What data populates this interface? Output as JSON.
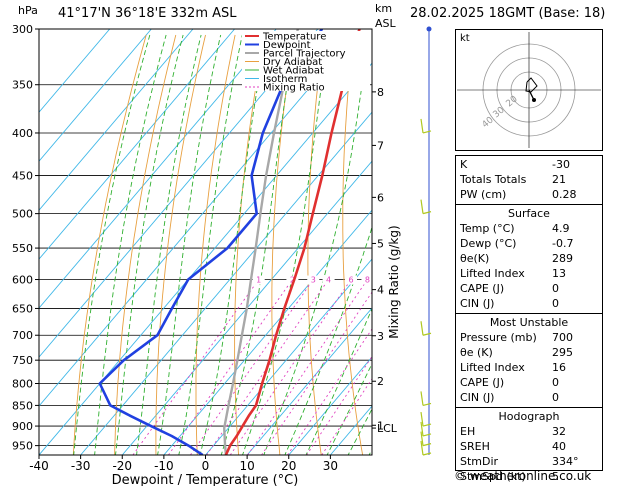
{
  "chart_data": {
    "type": "line",
    "header": {
      "location": "41°17'N  36°18'E  332m  ASL",
      "datetime": "28.02.2025  18GMT  (Base: 18)",
      "hpa_unit": "hPa",
      "km_unit": "km",
      "asl_unit": "ASL"
    },
    "xlabel": "Dewpoint / Temperature (°C)",
    "ylabel_right": "Mixing Ratio (g/kg)",
    "xlim": [
      -40,
      40
    ],
    "ylim": [
      300,
      975
    ],
    "x_ticks": [
      "-40",
      "-30",
      "-20",
      "-10",
      "0",
      "10",
      "20",
      "30"
    ],
    "pressure_levels": [
      "300",
      "350",
      "400",
      "450",
      "500",
      "550",
      "600",
      "650",
      "700",
      "750",
      "800",
      "850",
      "900",
      "950"
    ],
    "km_ticks": [
      {
        "p": 357,
        "label": "8"
      },
      {
        "p": 414,
        "label": "7"
      },
      {
        "p": 478,
        "label": "6"
      },
      {
        "p": 543,
        "label": "5"
      },
      {
        "p": 617,
        "label": "4"
      },
      {
        "p": 701,
        "label": "3"
      },
      {
        "p": 795,
        "label": "2"
      },
      {
        "p": 898,
        "label": "1"
      }
    ],
    "lcl_label": "LCL",
    "lcl_p": 905,
    "mixing_ratio_labels": [
      "1",
      "2",
      "3",
      "4",
      "6",
      "8",
      "10",
      "15",
      "20",
      "25"
    ],
    "legend": [
      "Temperature",
      "Dewpoint",
      "Parcel Trajectory",
      "Dry Adiabat",
      "Wet Adiabat",
      "Isotherm",
      "Mixing Ratio"
    ],
    "colors": {
      "temperature": "#e03030",
      "dewpoint": "#2040e0",
      "parcel": "#a8a8a8",
      "dry_adiabat": "#e8a040",
      "wet_adiabat": "#30b030",
      "isotherm": "#40b8e8",
      "mixing_ratio": "#e040c0"
    },
    "series": [
      {
        "name": "Temperature",
        "p": [
          975,
          950,
          925,
          900,
          875,
          850,
          800,
          750,
          700,
          650,
          600,
          550,
          500,
          450,
          400,
          350,
          300
        ],
        "t": [
          4.9,
          4.0,
          3.6,
          3.0,
          2.4,
          2.0,
          -1.0,
          -4.0,
          -7.5,
          -11.0,
          -14.5,
          -18.5,
          -23.5,
          -29.0,
          -35.5,
          -42.5,
          -50.0
        ]
      },
      {
        "name": "Dewpoint",
        "p": [
          975,
          950,
          925,
          900,
          875,
          850,
          800,
          750,
          700,
          650,
          600,
          550,
          500,
          450,
          400,
          350,
          300
        ],
        "t": [
          -0.7,
          -6.0,
          -12.0,
          -19.0,
          -26.0,
          -33.0,
          -40.0,
          -39.0,
          -36.0,
          -38.0,
          -40.0,
          -37.0,
          -37.0,
          -46.0,
          -52.0,
          -57.0,
          -59.0
        ]
      },
      {
        "name": "Parcel Trajectory",
        "p": [
          975,
          950,
          905,
          850,
          800,
          750,
          700,
          650,
          600,
          550,
          500,
          450,
          400,
          350,
          300
        ],
        "t": [
          4.9,
          2.8,
          -1.0,
          -4.6,
          -8.0,
          -11.7,
          -15.7,
          -20.0,
          -24.9,
          -30.2,
          -36.1,
          -42.5,
          -49.3,
          -56.8,
          -64.8
        ]
      }
    ]
  },
  "hodograph": {
    "label": "kt",
    "ring_labels": [
      "40",
      "30",
      "20"
    ]
  },
  "indices": {
    "basic": [
      {
        "k": "K",
        "v": "-30"
      },
      {
        "k": "Totals Totals",
        "v": "21"
      },
      {
        "k": "PW (cm)",
        "v": "0.28"
      }
    ],
    "surface": {
      "title": "Surface",
      "rows": [
        {
          "k": "Temp (°C)",
          "v": "4.9"
        },
        {
          "k": "Dewp (°C)",
          "v": "-0.7"
        },
        {
          "k": "θe(K)",
          "v": "289"
        },
        {
          "k": "Lifted Index",
          "v": "13"
        },
        {
          "k": "CAPE (J)",
          "v": "0"
        },
        {
          "k": "CIN (J)",
          "v": "0"
        }
      ]
    },
    "most_unstable": {
      "title": "Most Unstable",
      "rows": [
        {
          "k": "Pressure (mb)",
          "v": "700"
        },
        {
          "k": "θe (K)",
          "v": "295"
        },
        {
          "k": "Lifted Index",
          "v": "16"
        },
        {
          "k": "CAPE (J)",
          "v": "0"
        },
        {
          "k": "CIN (J)",
          "v": "0"
        }
      ]
    },
    "hodograph": {
      "title": "Hodograph",
      "rows": [
        {
          "k": "EH",
          "v": "32"
        },
        {
          "k": "SREH",
          "v": "40"
        },
        {
          "k": "StmDir",
          "v": "334°"
        },
        {
          "k": "StmSpd (kt)",
          "v": "5"
        }
      ]
    }
  },
  "footer": "© weatheronline.co.uk"
}
